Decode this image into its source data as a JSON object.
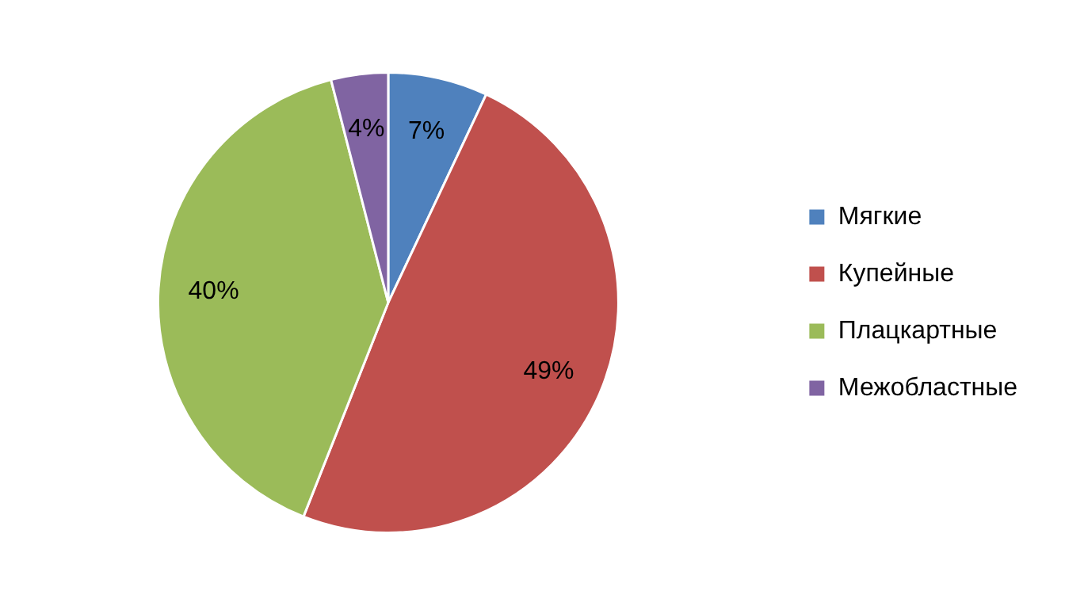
{
  "chart_data": {
    "type": "pie",
    "categories": [
      "Мягкие",
      "Купейные",
      "Плацкартные",
      "Межобластные"
    ],
    "values": [
      7,
      49,
      40,
      4
    ],
    "value_labels": [
      "7%",
      "49%",
      "40%",
      "4%"
    ],
    "colors": [
      "#4f81bd",
      "#c0504d",
      "#9bbb59",
      "#8064a2"
    ],
    "legend": "right"
  }
}
